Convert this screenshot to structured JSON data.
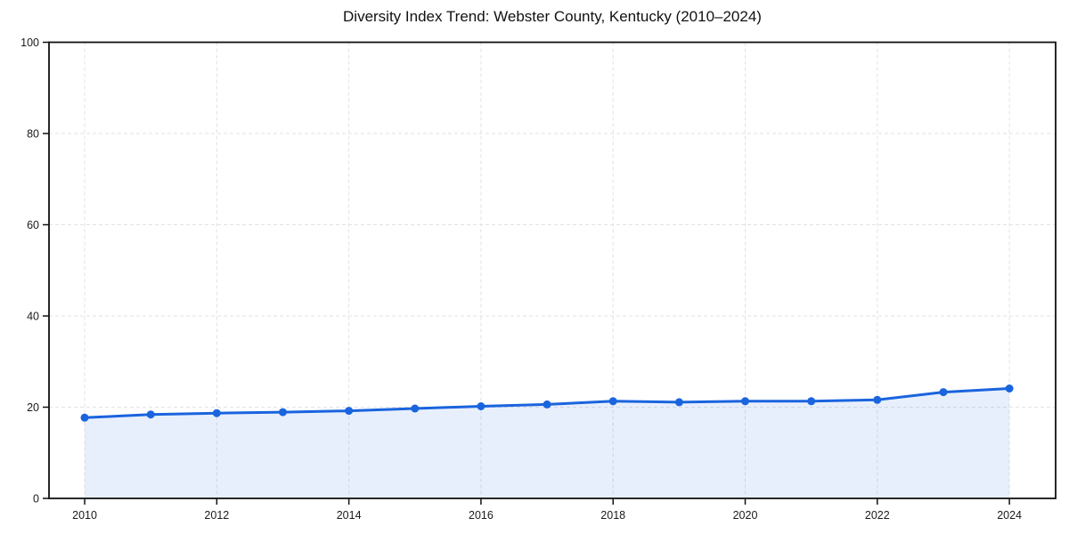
{
  "window": {
    "background": "#ffffff"
  },
  "chart_data": {
    "type": "line",
    "area_fill": true,
    "title": "Diversity Index Trend: Webster County, Kentucky (2010–2024)",
    "xlabel": "",
    "ylabel": "",
    "x": [
      2010,
      2011,
      2012,
      2013,
      2014,
      2015,
      2016,
      2017,
      2018,
      2019,
      2020,
      2021,
      2022,
      2023,
      2024
    ],
    "values": [
      17.7,
      18.4,
      18.7,
      18.9,
      19.2,
      19.7,
      20.2,
      20.6,
      21.3,
      21.1,
      21.3,
      21.3,
      21.6,
      23.3,
      24.1
    ],
    "xlim": [
      2009.46,
      2024.7
    ],
    "ylim": [
      0,
      100
    ],
    "x_ticks": [
      2010,
      2012,
      2014,
      2016,
      2018,
      2020,
      2022,
      2024
    ],
    "y_ticks": [
      0,
      20,
      40,
      60,
      80,
      100
    ],
    "grid": "dashed-both-axes",
    "legend": "none",
    "colors": {
      "line": "#1a64de",
      "fill": "#e8effc",
      "grid": "#e2e2e2",
      "axis": "#111111",
      "tick_text": "#1a1a1a",
      "background": "#ffffff"
    }
  }
}
